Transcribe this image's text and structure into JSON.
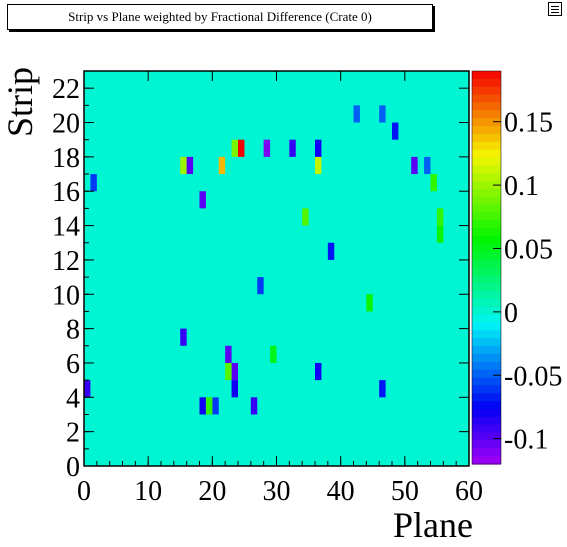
{
  "title": "Strip vs Plane weighted by Fractional Difference (Crate 0)",
  "menu_icon": "canvas-menu-icon",
  "chart_data": {
    "type": "heatmap",
    "title": "Strip vs Plane weighted by Fractional Difference (Crate 0)",
    "xlabel": "Plane",
    "ylabel": "Strip",
    "xlim": [
      0,
      60
    ],
    "ylim": [
      0,
      23
    ],
    "x_ticks": [
      0,
      10,
      20,
      30,
      40,
      50,
      60
    ],
    "y_ticks": [
      0,
      2,
      4,
      6,
      8,
      10,
      12,
      14,
      16,
      18,
      20,
      22
    ],
    "z_ticks": [
      0.15,
      0.1,
      0.05,
      0,
      -0.05,
      -0.1
    ],
    "z_tick_labels": [
      "0.15",
      "0.1",
      "0.05",
      "0",
      "-0.05",
      "-0.1"
    ],
    "zlim": [
      -0.12,
      0.19
    ],
    "background_value": 0.0,
    "cells": [
      {
        "plane": 24,
        "strip": 18,
        "value": 0.19
      },
      {
        "plane": 21,
        "strip": 17,
        "value": 0.14
      },
      {
        "plane": 23,
        "strip": 18,
        "value": 0.09
      },
      {
        "plane": 15,
        "strip": 17,
        "value": 0.1
      },
      {
        "plane": 36,
        "strip": 17,
        "value": 0.11
      },
      {
        "plane": 16,
        "strip": 17,
        "value": -0.1
      },
      {
        "plane": 28,
        "strip": 18,
        "value": -0.11
      },
      {
        "plane": 32,
        "strip": 18,
        "value": -0.09
      },
      {
        "plane": 36,
        "strip": 18,
        "value": -0.08
      },
      {
        "plane": 51,
        "strip": 17,
        "value": -0.1
      },
      {
        "plane": 48,
        "strip": 19,
        "value": -0.07
      },
      {
        "plane": 1,
        "strip": 16,
        "value": -0.06
      },
      {
        "plane": 18,
        "strip": 15,
        "value": -0.1
      },
      {
        "plane": 34,
        "strip": 14,
        "value": 0.08
      },
      {
        "plane": 55,
        "strip": 14,
        "value": 0.07
      },
      {
        "plane": 38,
        "strip": 12,
        "value": -0.07
      },
      {
        "plane": 27,
        "strip": 10,
        "value": -0.06
      },
      {
        "plane": 15,
        "strip": 7,
        "value": -0.09
      },
      {
        "plane": 22,
        "strip": 6,
        "value": -0.1
      },
      {
        "plane": 23,
        "strip": 5,
        "value": -0.1
      },
      {
        "plane": 36,
        "strip": 5,
        "value": -0.08
      },
      {
        "plane": 0,
        "strip": 4,
        "value": -0.09
      },
      {
        "plane": 23,
        "strip": 4,
        "value": -0.08
      },
      {
        "plane": 46,
        "strip": 4,
        "value": -0.07
      },
      {
        "plane": 18,
        "strip": 3,
        "value": -0.08
      },
      {
        "plane": 26,
        "strip": 3,
        "value": -0.09
      },
      {
        "plane": 20,
        "strip": 3,
        "value": -0.06
      },
      {
        "plane": 19,
        "strip": 3,
        "value": 0.07
      },
      {
        "plane": 22,
        "strip": 5,
        "value": 0.08
      },
      {
        "plane": 29,
        "strip": 6,
        "value": 0.05
      },
      {
        "plane": 44,
        "strip": 9,
        "value": 0.06
      },
      {
        "plane": 55,
        "strip": 13,
        "value": 0.06
      },
      {
        "plane": 54,
        "strip": 16,
        "value": 0.07
      },
      {
        "plane": 53,
        "strip": 17,
        "value": -0.05
      },
      {
        "plane": 42,
        "strip": 20,
        "value": -0.05
      },
      {
        "plane": 46,
        "strip": 20,
        "value": -0.05
      }
    ]
  }
}
